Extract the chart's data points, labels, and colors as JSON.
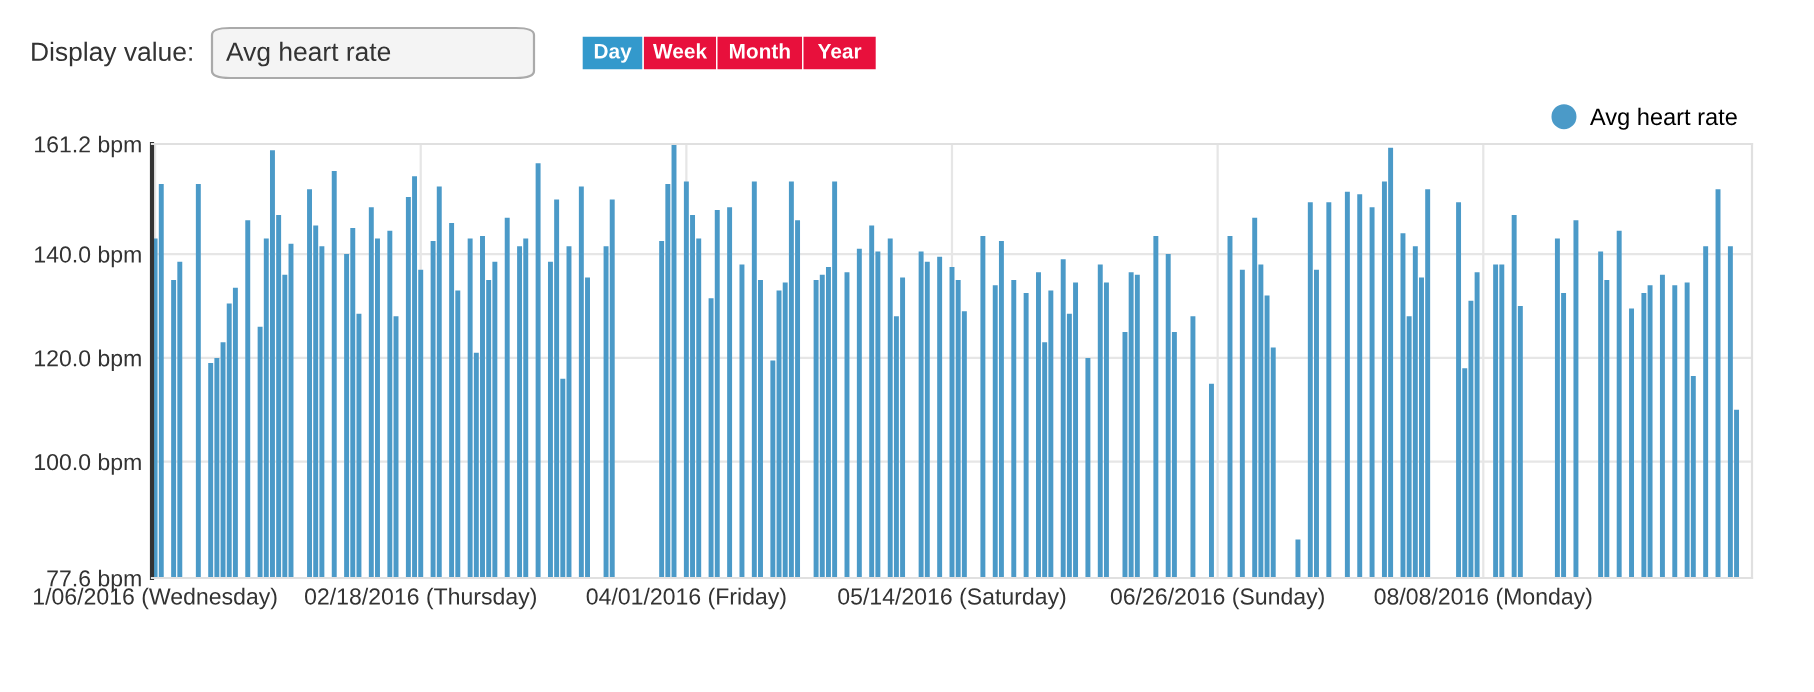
{
  "chart_data": {
    "type": "bar",
    "annotations": [
      "Display value:",
      "Avg heart rate",
      "Day",
      "Week",
      "Month",
      "Year"
    ],
    "x": [
      "2016-01-06",
      "2016-01-07",
      "2016-01-09",
      "2016-01-10",
      "2016-01-13",
      "2016-01-15",
      "2016-01-16",
      "2016-01-17",
      "2016-01-18",
      "2016-01-19",
      "2016-01-21",
      "2016-01-23",
      "2016-01-24",
      "2016-01-25",
      "2016-01-26",
      "2016-01-27",
      "2016-01-28",
      "2016-01-31",
      "2016-02-01",
      "2016-02-02",
      "2016-02-04",
      "2016-02-06",
      "2016-02-07",
      "2016-02-08",
      "2016-02-10",
      "2016-02-11",
      "2016-02-13",
      "2016-02-14",
      "2016-02-16",
      "2016-02-17",
      "2016-02-18",
      "2016-02-20",
      "2016-02-21",
      "2016-02-23",
      "2016-02-24",
      "2016-02-26",
      "2016-02-27",
      "2016-02-28",
      "2016-02-29",
      "2016-03-01",
      "2016-03-03",
      "2016-03-05",
      "2016-03-06",
      "2016-03-08",
      "2016-03-10",
      "2016-03-11",
      "2016-03-12",
      "2016-03-13",
      "2016-03-15",
      "2016-03-16",
      "2016-03-19",
      "2016-03-20",
      "2016-03-28",
      "2016-03-29",
      "2016-03-30",
      "2016-04-01",
      "2016-04-02",
      "2016-04-03",
      "2016-04-05",
      "2016-04-06",
      "2016-04-08",
      "2016-04-10",
      "2016-04-12",
      "2016-04-13",
      "2016-04-15",
      "2016-04-16",
      "2016-04-17",
      "2016-04-18",
      "2016-04-19",
      "2016-04-22",
      "2016-04-23",
      "2016-04-24",
      "2016-04-25",
      "2016-04-27",
      "2016-04-29",
      "2016-05-01",
      "2016-05-02",
      "2016-05-04",
      "2016-05-05",
      "2016-05-06",
      "2016-05-09",
      "2016-05-10",
      "2016-05-12",
      "2016-05-14",
      "2016-05-15",
      "2016-05-16",
      "2016-05-19",
      "2016-05-21",
      "2016-05-22",
      "2016-05-24",
      "2016-05-26",
      "2016-05-28",
      "2016-05-29",
      "2016-05-30",
      "2016-06-01",
      "2016-06-02",
      "2016-06-03",
      "2016-06-05",
      "2016-06-07",
      "2016-06-08",
      "2016-06-11",
      "2016-06-12",
      "2016-06-13",
      "2016-06-16",
      "2016-06-18",
      "2016-06-19",
      "2016-06-22",
      "2016-06-25",
      "2016-06-28",
      "2016-06-30",
      "2016-07-02",
      "2016-07-03",
      "2016-07-04",
      "2016-07-05",
      "2016-07-09",
      "2016-07-11",
      "2016-07-12",
      "2016-07-14",
      "2016-07-17",
      "2016-07-19",
      "2016-07-21",
      "2016-07-23",
      "2016-07-24",
      "2016-07-26",
      "2016-07-27",
      "2016-07-28",
      "2016-07-29",
      "2016-07-30",
      "2016-08-04",
      "2016-08-05",
      "2016-08-06",
      "2016-08-07",
      "2016-08-10",
      "2016-08-11",
      "2016-08-13",
      "2016-08-14",
      "2016-08-20",
      "2016-08-21",
      "2016-08-23",
      "2016-08-27",
      "2016-08-28",
      "2016-08-30",
      "2016-09-01",
      "2016-09-03",
      "2016-09-04",
      "2016-09-06",
      "2016-09-08",
      "2016-09-10",
      "2016-09-11",
      "2016-09-13",
      "2016-09-15",
      "2016-09-17",
      "2016-09-18"
    ],
    "series": [
      {
        "name": "Avg heart rate",
        "color": "#4b9ac8",
        "values": [
          143,
          153.5,
          135,
          138.5,
          153.5,
          119,
          120,
          123,
          130.5,
          133.5,
          146.5,
          126,
          143,
          160,
          147.5,
          136,
          142,
          152.5,
          145.5,
          141.5,
          156,
          140,
          145,
          128.5,
          149,
          143,
          144.5,
          128,
          151,
          155,
          137,
          142.5,
          153,
          146,
          133,
          143,
          121,
          143.5,
          135,
          138.5,
          147,
          141.5,
          143,
          157.5,
          138.5,
          150.5,
          116,
          141.5,
          153,
          135.5,
          141.5,
          150.5,
          142.5,
          153.5,
          161.2,
          154,
          147.5,
          143,
          131.5,
          148.5,
          149,
          138,
          154,
          135,
          119.5,
          133,
          134.5,
          154,
          146.5,
          135,
          136,
          137.5,
          154,
          136.5,
          141,
          145.5,
          140.5,
          143,
          128,
          135.5,
          140.5,
          138.5,
          139.5,
          137.5,
          135,
          129,
          143.5,
          134,
          142.5,
          135,
          132.5,
          136.5,
          123,
          133,
          139,
          128.5,
          134.5,
          120,
          138,
          134.5,
          125,
          136.5,
          136,
          143.5,
          140,
          125,
          128,
          115,
          143.5,
          137,
          147,
          138,
          132,
          122,
          85,
          150,
          137,
          150,
          152,
          151.5,
          149,
          154,
          160.5,
          144,
          128,
          141.5,
          135.5,
          152.5,
          150,
          118,
          131,
          136.5,
          138,
          138,
          147.5,
          130,
          143,
          132.5,
          146.5,
          140.5,
          135,
          144.5,
          129.5,
          132.5,
          134,
          136,
          134,
          134.5,
          116.5,
          141.5,
          152.5,
          141.5,
          110
        ]
      }
    ],
    "xlim": [
      "2016-01-05T12:00",
      "2016-09-20T12:00"
    ],
    "xticks": [
      {
        "value": "2016-01-06",
        "label": "1/06/2016 (Wednesday)"
      },
      {
        "value": "2016-02-18",
        "label": "02/18/2016 (Thursday)"
      },
      {
        "value": "2016-04-01",
        "label": "04/01/2016 (Friday)"
      },
      {
        "value": "2016-05-14",
        "label": "05/14/2016 (Saturday)"
      },
      {
        "value": "2016-06-26",
        "label": "06/26/2016 (Sunday)"
      },
      {
        "value": "2016-08-08",
        "label": "08/08/2016 (Monday)"
      }
    ],
    "ylim": [
      77.6,
      161.2
    ],
    "yticks": [
      {
        "value": 77.6,
        "label": "77.6 bpm"
      },
      {
        "value": 100,
        "label": "100.0 bpm"
      },
      {
        "value": 120,
        "label": "120.0 bpm"
      },
      {
        "value": 140,
        "label": "140.0 bpm"
      },
      {
        "value": 161.2,
        "label": "161.2 bpm"
      }
    ],
    "grid": true,
    "legend": "top right"
  }
}
